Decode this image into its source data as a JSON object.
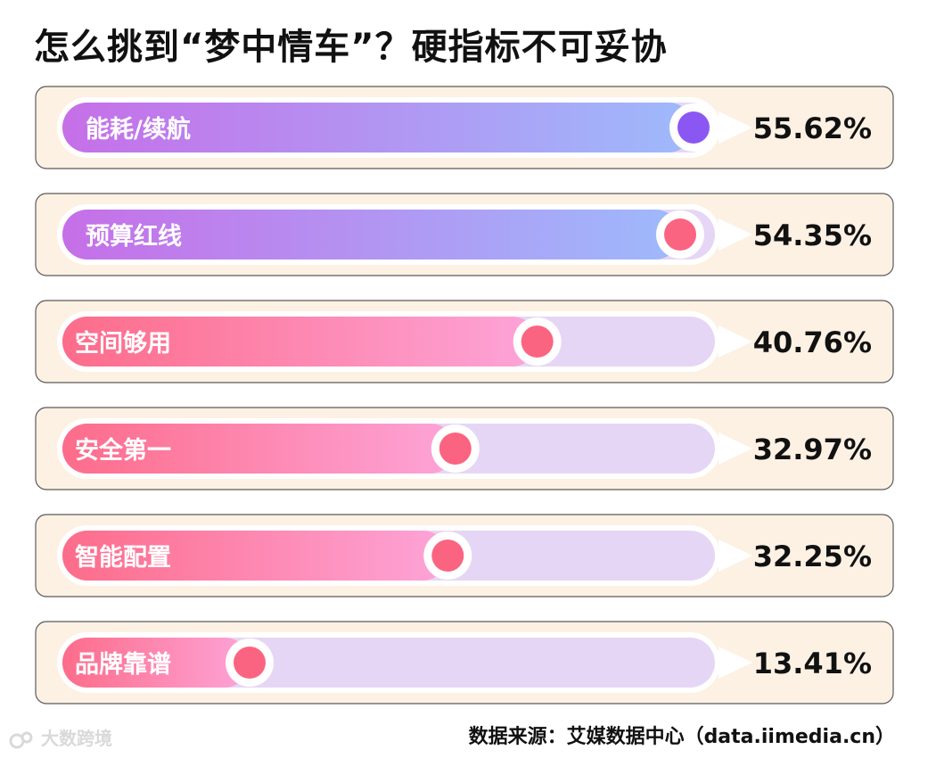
{
  "title": "怎么挑到“梦中情车”？硬指标不可妥协",
  "source": "数据来源：艾媒数据中心（data.iimedia.cn）",
  "watermark": "大数跨境",
  "colors": {
    "card_bg": "#fdf1e4",
    "card_border": "#5a5a5a",
    "track": "#e6d6f5",
    "purple_start": "#c66fe8",
    "purple_end": "#9ebafc",
    "pink_start": "#fd6c8a",
    "pink_end": "#fda4d8",
    "knob_purple": "#8b57f3",
    "knob_pink": "#fb6480"
  },
  "chart_data": {
    "type": "bar",
    "orientation": "horizontal",
    "unit": "%",
    "xlim": [
      0,
      55.62
    ],
    "categories": [
      "能耗/续航",
      "预算红线",
      "空间够用",
      "安全第一",
      "智能配置",
      "品牌靠谱"
    ],
    "values": [
      55.62,
      54.35,
      40.76,
      32.97,
      32.25,
      13.41
    ],
    "value_labels": [
      "55.62%",
      "54.35%",
      "40.76%",
      "32.97%",
      "32.25%",
      "13.41%"
    ],
    "bar_styles": [
      "purple",
      "purple",
      "pink",
      "pink",
      "pink",
      "pink"
    ]
  }
}
